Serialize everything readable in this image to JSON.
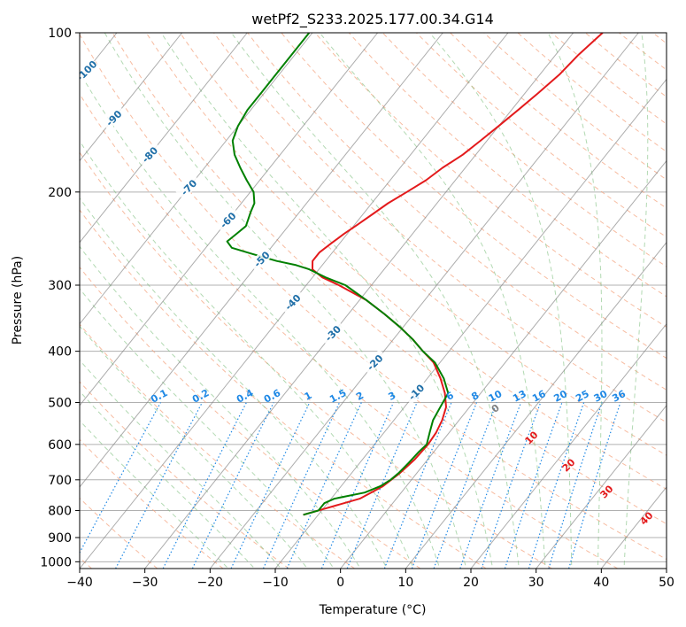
{
  "chart_data": {
    "type": "line",
    "title": "wetPf2_S233.2025.177.00.34.G14",
    "xlabel": "Temperature (°C)",
    "ylabel": "Pressure (hPa)",
    "xlim": [
      -40,
      50
    ],
    "ylim": [
      1030,
      100
    ],
    "y_scale": "log",
    "grid": true,
    "x_ticks": [
      -40,
      -30,
      -20,
      -10,
      0,
      10,
      20,
      30,
      40,
      50
    ],
    "y_ticks": [
      100,
      200,
      300,
      400,
      500,
      600,
      700,
      800,
      900,
      1000
    ],
    "isotherm_labels": [
      "-100",
      "-90",
      "-80",
      "-70",
      "-60",
      "-50",
      "-40",
      "-30",
      "-20",
      "-10"
    ],
    "mixing_ratio_labels": [
      "0.1",
      "0.2",
      "0.4",
      "0.6",
      "1",
      "1.5",
      "2",
      "3",
      "4",
      "6",
      "8",
      "10",
      "13",
      "16",
      "20",
      "25",
      "30",
      "36"
    ],
    "moist_adiabat_labels": [
      "0"
    ],
    "dry_adiabat_labels": [
      "10",
      "20",
      "30",
      "40"
    ],
    "colors": {
      "temperature": "#e31a1c",
      "dewpoint": "#008000",
      "isotherm": "#808080",
      "mixing_ratio": "#1e88e5",
      "moist_adiabat": "#7fbf7f",
      "dry_adiabat": "#f4a582",
      "isotherm_label": "#1f6fa8"
    },
    "series": [
      {
        "name": "",
        "role": "temperature",
        "p": [
          815,
          800,
          760,
          720,
          680,
          640,
          600,
          570,
          540,
          510,
          480,
          450,
          420,
          400,
          380,
          360,
          340,
          320,
          300,
          290,
          280,
          270,
          260,
          250,
          240,
          230,
          220,
          210,
          200,
          190,
          180,
          170,
          160,
          150,
          140,
          130,
          120,
          110,
          100
        ],
        "t": [
          -12.3,
          -10.5,
          -5.6,
          -3.6,
          -2.6,
          -2.0,
          -1.8,
          -2.0,
          -2.6,
          -3.6,
          -5.5,
          -8.0,
          -11.0,
          -14.0,
          -17.0,
          -20.5,
          -24.5,
          -29.0,
          -35.0,
          -38.5,
          -41.0,
          -42.0,
          -42.0,
          -41.3,
          -40.5,
          -39.5,
          -38.5,
          -37.5,
          -36.0,
          -34.5,
          -33.5,
          -32.0,
          -31.0,
          -30.0,
          -29.0,
          -28.0,
          -27.0,
          -26.5,
          -25.5
        ]
      },
      {
        "name": "",
        "role": "dewpoint",
        "p": [
          815,
          800,
          775,
          760,
          740,
          720,
          700,
          680,
          650,
          620,
          600,
          570,
          540,
          510,
          480,
          450,
          420,
          400,
          380,
          360,
          340,
          320,
          300,
          290,
          280,
          275,
          270,
          262,
          255,
          248,
          240,
          232,
          225,
          218,
          210,
          200,
          190,
          180,
          170,
          160,
          150,
          140,
          130,
          120,
          110,
          100
        ],
        "t": [
          -12.3,
          -10.5,
          -10.5,
          -9.5,
          -5.6,
          -4.0,
          -3.2,
          -2.8,
          -2.5,
          -2.3,
          -2.0,
          -3.0,
          -4.0,
          -4.5,
          -5.0,
          -7.5,
          -10.8,
          -14.0,
          -17.0,
          -20.5,
          -24.5,
          -29.0,
          -34.0,
          -38.0,
          -41.5,
          -44.0,
          -47.5,
          -52.0,
          -56.0,
          -57.5,
          -57.0,
          -56.5,
          -57.0,
          -57.5,
          -58.0,
          -59.5,
          -62.0,
          -64.5,
          -67.0,
          -69.0,
          -70.0,
          -70.5,
          -70.5,
          -70.5,
          -70.5,
          -70.5
        ]
      }
    ]
  }
}
